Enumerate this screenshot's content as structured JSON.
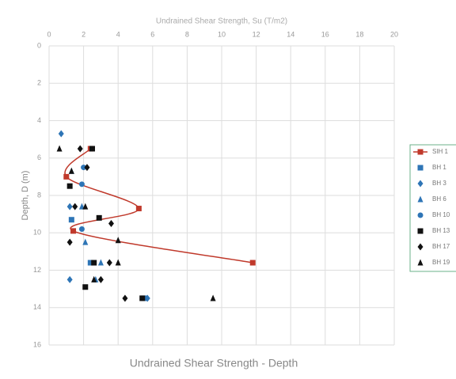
{
  "chart_data": {
    "type": "scatter",
    "title": "Undrained Shear Strength - Depth",
    "x_label": "Undrained Shear Strength, Su (T/m2)",
    "y_label": "Depth, D (m)",
    "xlim": [
      0,
      20
    ],
    "xticks": [
      0,
      2,
      4,
      6,
      8,
      10,
      12,
      14,
      16,
      18,
      20
    ],
    "ylim": [
      0,
      16
    ],
    "yticks": [
      0,
      2,
      4,
      6,
      8,
      10,
      12,
      14,
      16
    ],
    "y_inverted": true,
    "x_axis_position": "top",
    "grid": true,
    "legend": "right",
    "series": [
      {
        "name": "SIH 1",
        "color": "#c0392b",
        "marker": "square",
        "line": true,
        "x": [
          2.4,
          1.0,
          5.2,
          1.4,
          11.8
        ],
        "values": [
          5.5,
          7.0,
          8.7,
          9.9,
          11.6
        ]
      },
      {
        "name": "BH 1",
        "color": "#2e75b6",
        "marker": "square",
        "x": [
          1.3,
          2.4,
          5.5
        ],
        "values": [
          9.3,
          11.6,
          13.5
        ]
      },
      {
        "name": "BH 3",
        "color": "#2e75b6",
        "marker": "diamond",
        "x": [
          0.7,
          1.2,
          1.2,
          5.7
        ],
        "values": [
          4.7,
          8.6,
          12.5,
          13.5
        ]
      },
      {
        "name": "BH 6",
        "color": "#2e75b6",
        "marker": "triangle",
        "x": [
          1.3,
          1.9,
          2.1,
          3.0,
          2.7
        ],
        "values": [
          6.7,
          8.6,
          10.5,
          11.6,
          12.5
        ]
      },
      {
        "name": "BH 10",
        "color": "#2e75b6",
        "marker": "circle",
        "x": [
          1.9,
          1.9,
          2.0
        ],
        "values": [
          7.4,
          9.8,
          6.5
        ]
      },
      {
        "name": "BH 13",
        "color": "#111111",
        "marker": "square",
        "x": [
          2.5,
          1.2,
          2.9,
          2.1,
          2.6,
          5.4
        ],
        "values": [
          5.5,
          7.5,
          9.2,
          12.9,
          11.6,
          13.5
        ]
      },
      {
        "name": "BH 17",
        "color": "#111111",
        "marker": "diamond",
        "x": [
          1.8,
          2.2,
          1.5,
          1.2,
          3.6,
          3.5,
          3.0,
          4.4
        ],
        "values": [
          5.5,
          6.5,
          8.6,
          10.5,
          9.5,
          11.6,
          12.5,
          13.5
        ]
      },
      {
        "name": "BH 19",
        "color": "#111111",
        "marker": "triangle",
        "x": [
          0.6,
          1.3,
          2.1,
          4.0,
          4.0,
          2.6,
          9.5
        ],
        "values": [
          5.5,
          6.7,
          8.6,
          10.4,
          11.6,
          12.5,
          13.5
        ]
      }
    ]
  }
}
